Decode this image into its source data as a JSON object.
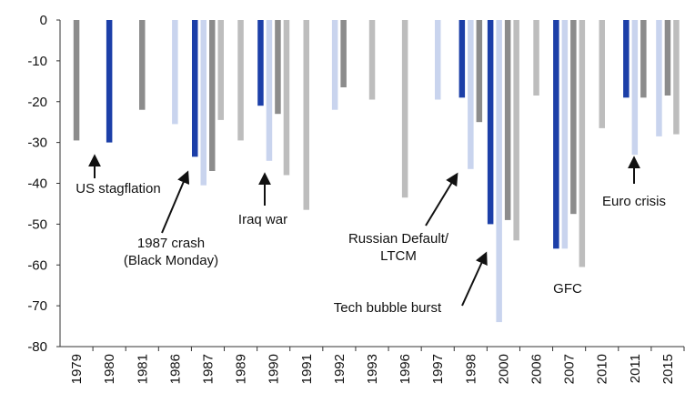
{
  "chart_data": {
    "type": "bar",
    "title": "",
    "xlabel": "",
    "ylabel": "",
    "ylim": [
      -80,
      0
    ],
    "yticks": [
      0,
      -10,
      -20,
      -30,
      -40,
      -50,
      -60,
      -70,
      -80
    ],
    "grid": false,
    "legend": "none",
    "colors": {
      "dark_gray": "#8c8c8c",
      "navy": "#1c3fa8",
      "light_blue": "#c9d4ee",
      "light_gray": "#bdbdbd",
      "axis": "#333333"
    },
    "categories": [
      "1979",
      "1980",
      "1981",
      "1986",
      "1987",
      "1989",
      "1990",
      "1991",
      "1992",
      "1993",
      "1996",
      "1997",
      "1998",
      "2000",
      "2006",
      "2007",
      "2010",
      "2011",
      "2015"
    ],
    "bars": [
      {
        "category": "1979",
        "value": -29.5,
        "color": "dark_gray"
      },
      {
        "category": "1980",
        "value": -30,
        "color": "navy"
      },
      {
        "category": "1981",
        "value": -22,
        "color": "dark_gray"
      },
      {
        "category": "1986",
        "value": -25.5,
        "color": "light_blue"
      },
      {
        "category": "1987",
        "value": -33.5,
        "color": "navy"
      },
      {
        "category": "1987",
        "value": -40.5,
        "color": "light_blue"
      },
      {
        "category": "1987",
        "value": -37,
        "color": "dark_gray"
      },
      {
        "category": "1987",
        "value": -24.5,
        "color": "light_gray"
      },
      {
        "category": "1989",
        "value": -29.5,
        "color": "light_gray"
      },
      {
        "category": "1990",
        "value": -21,
        "color": "navy"
      },
      {
        "category": "1990",
        "value": -34.5,
        "color": "light_blue"
      },
      {
        "category": "1990",
        "value": -23,
        "color": "dark_gray"
      },
      {
        "category": "1990",
        "value": -38,
        "color": "light_gray"
      },
      {
        "category": "1991",
        "value": -46.5,
        "color": "light_gray"
      },
      {
        "category": "1992",
        "value": -22,
        "color": "light_blue"
      },
      {
        "category": "1992",
        "value": -16.5,
        "color": "dark_gray"
      },
      {
        "category": "1993",
        "value": -19.5,
        "color": "light_gray"
      },
      {
        "category": "1996",
        "value": -43.5,
        "color": "light_gray"
      },
      {
        "category": "1997",
        "value": -19.5,
        "color": "light_blue"
      },
      {
        "category": "1998",
        "value": -19,
        "color": "navy"
      },
      {
        "category": "1998",
        "value": -36.5,
        "color": "light_blue"
      },
      {
        "category": "1998",
        "value": -25,
        "color": "dark_gray"
      },
      {
        "category": "2000",
        "value": -50,
        "color": "navy"
      },
      {
        "category": "2000",
        "value": -74,
        "color": "light_blue"
      },
      {
        "category": "2000",
        "value": -49,
        "color": "dark_gray"
      },
      {
        "category": "2000",
        "value": -54,
        "color": "light_gray"
      },
      {
        "category": "2006",
        "value": -18.5,
        "color": "light_gray"
      },
      {
        "category": "2007",
        "value": -56,
        "color": "navy"
      },
      {
        "category": "2007",
        "value": -56,
        "color": "light_blue"
      },
      {
        "category": "2007",
        "value": -47.5,
        "color": "dark_gray"
      },
      {
        "category": "2007",
        "value": -60.5,
        "color": "light_gray"
      },
      {
        "category": "2010",
        "value": -26.5,
        "color": "light_gray"
      },
      {
        "category": "2011",
        "value": -19,
        "color": "navy"
      },
      {
        "category": "2011",
        "value": -33,
        "color": "light_blue"
      },
      {
        "category": "2011",
        "value": -19,
        "color": "dark_gray"
      },
      {
        "category": "2015",
        "value": -28.5,
        "color": "light_blue"
      },
      {
        "category": "2015",
        "value": -18.5,
        "color": "dark_gray"
      },
      {
        "category": "2015",
        "value": -28,
        "color": "light_gray"
      }
    ],
    "annotations": [
      {
        "lines": [
          "US stagflation"
        ],
        "value": -30,
        "category": "1980",
        "arrow": true
      },
      {
        "lines": [
          "1987 crash",
          "(Black Monday)"
        ],
        "value": -33.5,
        "category": "1987",
        "arrow": true
      },
      {
        "lines": [
          "Iraq war"
        ],
        "value": -34.5,
        "category": "1990",
        "arrow": true
      },
      {
        "lines": [
          "Russian Default/",
          "LTCM"
        ],
        "value": -36.5,
        "category": "1998",
        "arrow": true
      },
      {
        "lines": [
          "Tech bubble burst"
        ],
        "value": -50,
        "category": "2000",
        "arrow": true
      },
      {
        "lines": [
          "GFC"
        ],
        "value": -56,
        "category": "2007",
        "arrow": false
      },
      {
        "lines": [
          "Euro crisis"
        ],
        "value": -33,
        "category": "2011",
        "arrow": true
      }
    ]
  }
}
